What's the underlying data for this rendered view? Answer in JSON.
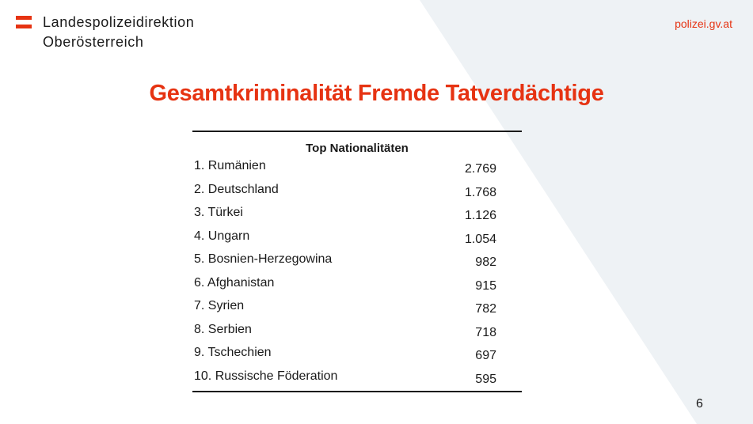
{
  "header": {
    "org_line1": "Landespolizeidirektion",
    "org_line2": "Oberösterreich",
    "website": "polizei.gv.at",
    "logo_icon": "austria-flag-logo-icon"
  },
  "colors": {
    "accent": "#e63312",
    "background_shape": "#eef2f5",
    "text": "#1a1a1a"
  },
  "slide": {
    "title": "Gesamtkriminalität Fremde Tatverdächtige",
    "page_number": "6"
  },
  "table": {
    "header": "Top Nationalitäten",
    "rows": [
      {
        "name": "1. Rumänien",
        "value": "2.769"
      },
      {
        "name": "2. Deutschland",
        "value": "1.768"
      },
      {
        "name": "3. Türkei",
        "value": "1.126"
      },
      {
        "name": "4. Ungarn",
        "value": "1.054"
      },
      {
        "name": "5. Bosnien-Herzegowina",
        "value": "982"
      },
      {
        "name": "6. Afghanistan",
        "value": "915"
      },
      {
        "name": "7. Syrien",
        "value": "782"
      },
      {
        "name": "8. Serbien",
        "value": "718"
      },
      {
        "name": "9. Tschechien",
        "value": "697"
      },
      {
        "name": "10. Russische Föderation",
        "value": "595"
      }
    ]
  }
}
